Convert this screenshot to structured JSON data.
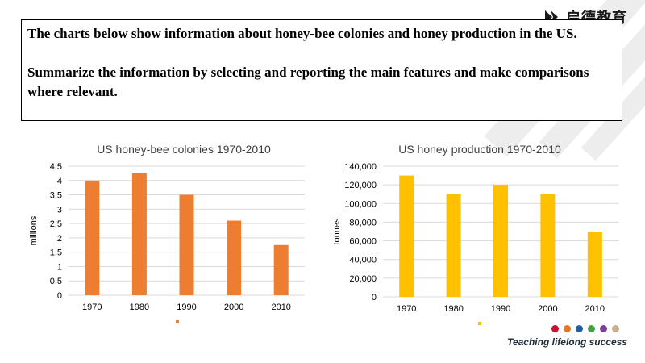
{
  "prompt": {
    "line1": "The charts below show information  about honey-bee colonies and honey production in  the US.",
    "line2": "Summarize  the information  by selecting and reporting  the main  features and  make comparisons  where relevant."
  },
  "branding": {
    "logo_text": "启德教育",
    "tagline": "Teaching lifelong success",
    "dot_colors": [
      "#c8102e",
      "#e87722",
      "#1f5fa8",
      "#43a047",
      "#7b3f99",
      "#c9b28a"
    ]
  },
  "chart_data": [
    {
      "type": "bar",
      "title": "US honey-bee  colonies 1970-2010",
      "ylabel": "millions",
      "xlabel": "",
      "categories": [
        "1970",
        "1980",
        "1990",
        "2000",
        "2010"
      ],
      "values": [
        4.0,
        4.25,
        3.5,
        2.6,
        1.75
      ],
      "ylim": [
        0,
        4.5
      ],
      "yticks": [
        "0",
        "0.5",
        "1",
        "1.5",
        "2",
        "2.5",
        "3",
        "3.5",
        "4",
        "4.5"
      ],
      "color": "#ed7d31",
      "grid": true,
      "legend": "bottom"
    },
    {
      "type": "bar",
      "title": "US honey  production 1970-2010",
      "ylabel": "tonnes",
      "xlabel": "",
      "categories": [
        "1970",
        "1980",
        "1990",
        "2000",
        "2010"
      ],
      "values": [
        130000,
        110000,
        120000,
        110000,
        70000
      ],
      "ylim": [
        0,
        140000
      ],
      "yticks": [
        "0",
        "20,000",
        "40,000",
        "60,000",
        "80,000",
        "100,000",
        "120,000",
        "140,000"
      ],
      "color": "#ffc000",
      "grid": true,
      "legend": "bottom"
    }
  ]
}
